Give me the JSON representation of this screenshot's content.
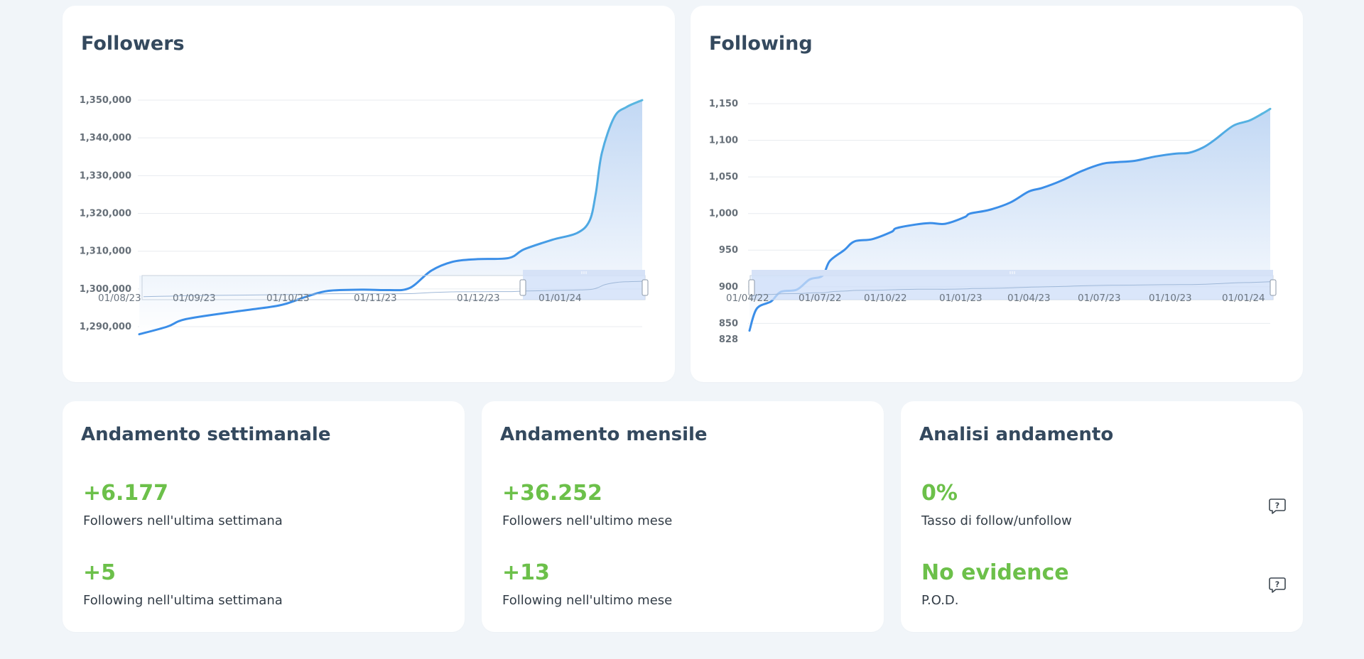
{
  "charts": [
    {
      "title": "Followers",
      "chart_data": {
        "type": "area",
        "title": "Followers",
        "xlabel": "",
        "ylabel": "",
        "y_ticks": [
          "1,290,000",
          "1,300,000",
          "1,310,000",
          "1,320,000",
          "1,330,000",
          "1,340,000",
          "1,350,000"
        ],
        "x_ticks": [
          "01/08/23",
          "01/09/23",
          "01/10/23",
          "01/11/23",
          "01/12/23",
          "01/01/24"
        ],
        "ylim": [
          1287000,
          1350000
        ],
        "xlim": [
          "2023-08-01",
          "2024-01-10"
        ],
        "x": [
          "2023-08-01",
          "2023-08-10",
          "2023-08-16",
          "2023-09-01",
          "2023-09-12",
          "2023-09-17",
          "2023-09-24",
          "2023-10-01",
          "2023-10-12",
          "2023-10-20",
          "2023-10-27",
          "2023-11-03",
          "2023-11-10",
          "2023-11-18",
          "2023-11-28",
          "2023-12-03",
          "2023-12-12",
          "2023-12-20",
          "2023-12-24",
          "2023-12-26",
          "2023-12-28",
          "2024-01-01",
          "2024-01-05",
          "2024-01-10"
        ],
        "values": [
          1288000,
          1290000,
          1292000,
          1294000,
          1295200,
          1296000,
          1298000,
          1299500,
          1299800,
          1299700,
          1300200,
          1304800,
          1307200,
          1307900,
          1308200,
          1310500,
          1313000,
          1314800,
          1318000,
          1325000,
          1336000,
          1345500,
          1348200,
          1350000
        ],
        "series_name": "",
        "grid": true,
        "navigator": true
      }
    },
    {
      "title": "Following",
      "chart_data": {
        "type": "area",
        "title": "Following",
        "xlabel": "",
        "ylabel": "",
        "y_ticks": [
          "828",
          "850",
          "900",
          "950",
          "1,000",
          "1,050",
          "1,100",
          "1,150"
        ],
        "x_ticks": [
          "01/04/22",
          "01/07/22",
          "01/10/22",
          "01/01/23",
          "01/04/23",
          "01/07/23",
          "01/10/23",
          "01/01/24"
        ],
        "ylim": [
          828,
          1152
        ],
        "xlim": [
          "2022-04-01",
          "2024-01-10"
        ],
        "x": [
          "2022-04-01",
          "2022-04-10",
          "2022-04-28",
          "2022-05-10",
          "2022-05-30",
          "2022-06-15",
          "2022-07-01",
          "2022-07-10",
          "2022-07-28",
          "2022-08-10",
          "2022-09-01",
          "2022-09-25",
          "2022-10-01",
          "2022-10-25",
          "2022-11-12",
          "2022-12-01",
          "2022-12-25",
          "2023-01-01",
          "2023-01-25",
          "2023-02-20",
          "2023-03-15",
          "2023-04-01",
          "2023-04-25",
          "2023-05-20",
          "2023-06-15",
          "2023-07-01",
          "2023-07-25",
          "2023-08-20",
          "2023-09-15",
          "2023-10-01",
          "2023-10-18",
          "2023-11-01",
          "2023-11-25",
          "2023-12-15",
          "2024-01-01",
          "2024-01-10"
        ],
        "values": [
          840,
          870,
          880,
          893,
          896,
          910,
          915,
          935,
          950,
          962,
          965,
          975,
          980,
          985,
          987,
          986,
          995,
          1000,
          1005,
          1015,
          1030,
          1035,
          1045,
          1058,
          1068,
          1070,
          1072,
          1078,
          1082,
          1083,
          1090,
          1100,
          1120,
          1127,
          1137,
          1143
        ],
        "series_name": "",
        "grid": true,
        "navigator": true
      }
    }
  ],
  "stats": [
    {
      "title": "Andamento settimanale",
      "items": [
        {
          "value": "+6.177",
          "desc": "Followers nell'ultima settimana"
        },
        {
          "value": "+5",
          "desc": "Following nell'ultima settimana"
        }
      ]
    },
    {
      "title": "Andamento mensile",
      "items": [
        {
          "value": "+36.252",
          "desc": "Followers nell'ultimo mese"
        },
        {
          "value": "+13",
          "desc": "Following nell'ultimo mese"
        }
      ]
    },
    {
      "title": "Analisi andamento",
      "items": [
        {
          "value": "0%",
          "desc": "Tasso di follow/unfollow",
          "icon": "help-icon"
        },
        {
          "value": "No evidence",
          "desc": "P.O.D.",
          "icon": "help-icon"
        }
      ]
    }
  ],
  "colors": {
    "line": "#3b8ee8",
    "line_end": "#5ab8e0",
    "area_top": "#c2d8f4",
    "area_bottom": "#ffffff",
    "grid": "#e8ebef",
    "positive": "#6cc04a",
    "title": "#34495e",
    "navigator_mask": "#cdddf8",
    "navigator_handle_bar": "#d6e2f7"
  }
}
